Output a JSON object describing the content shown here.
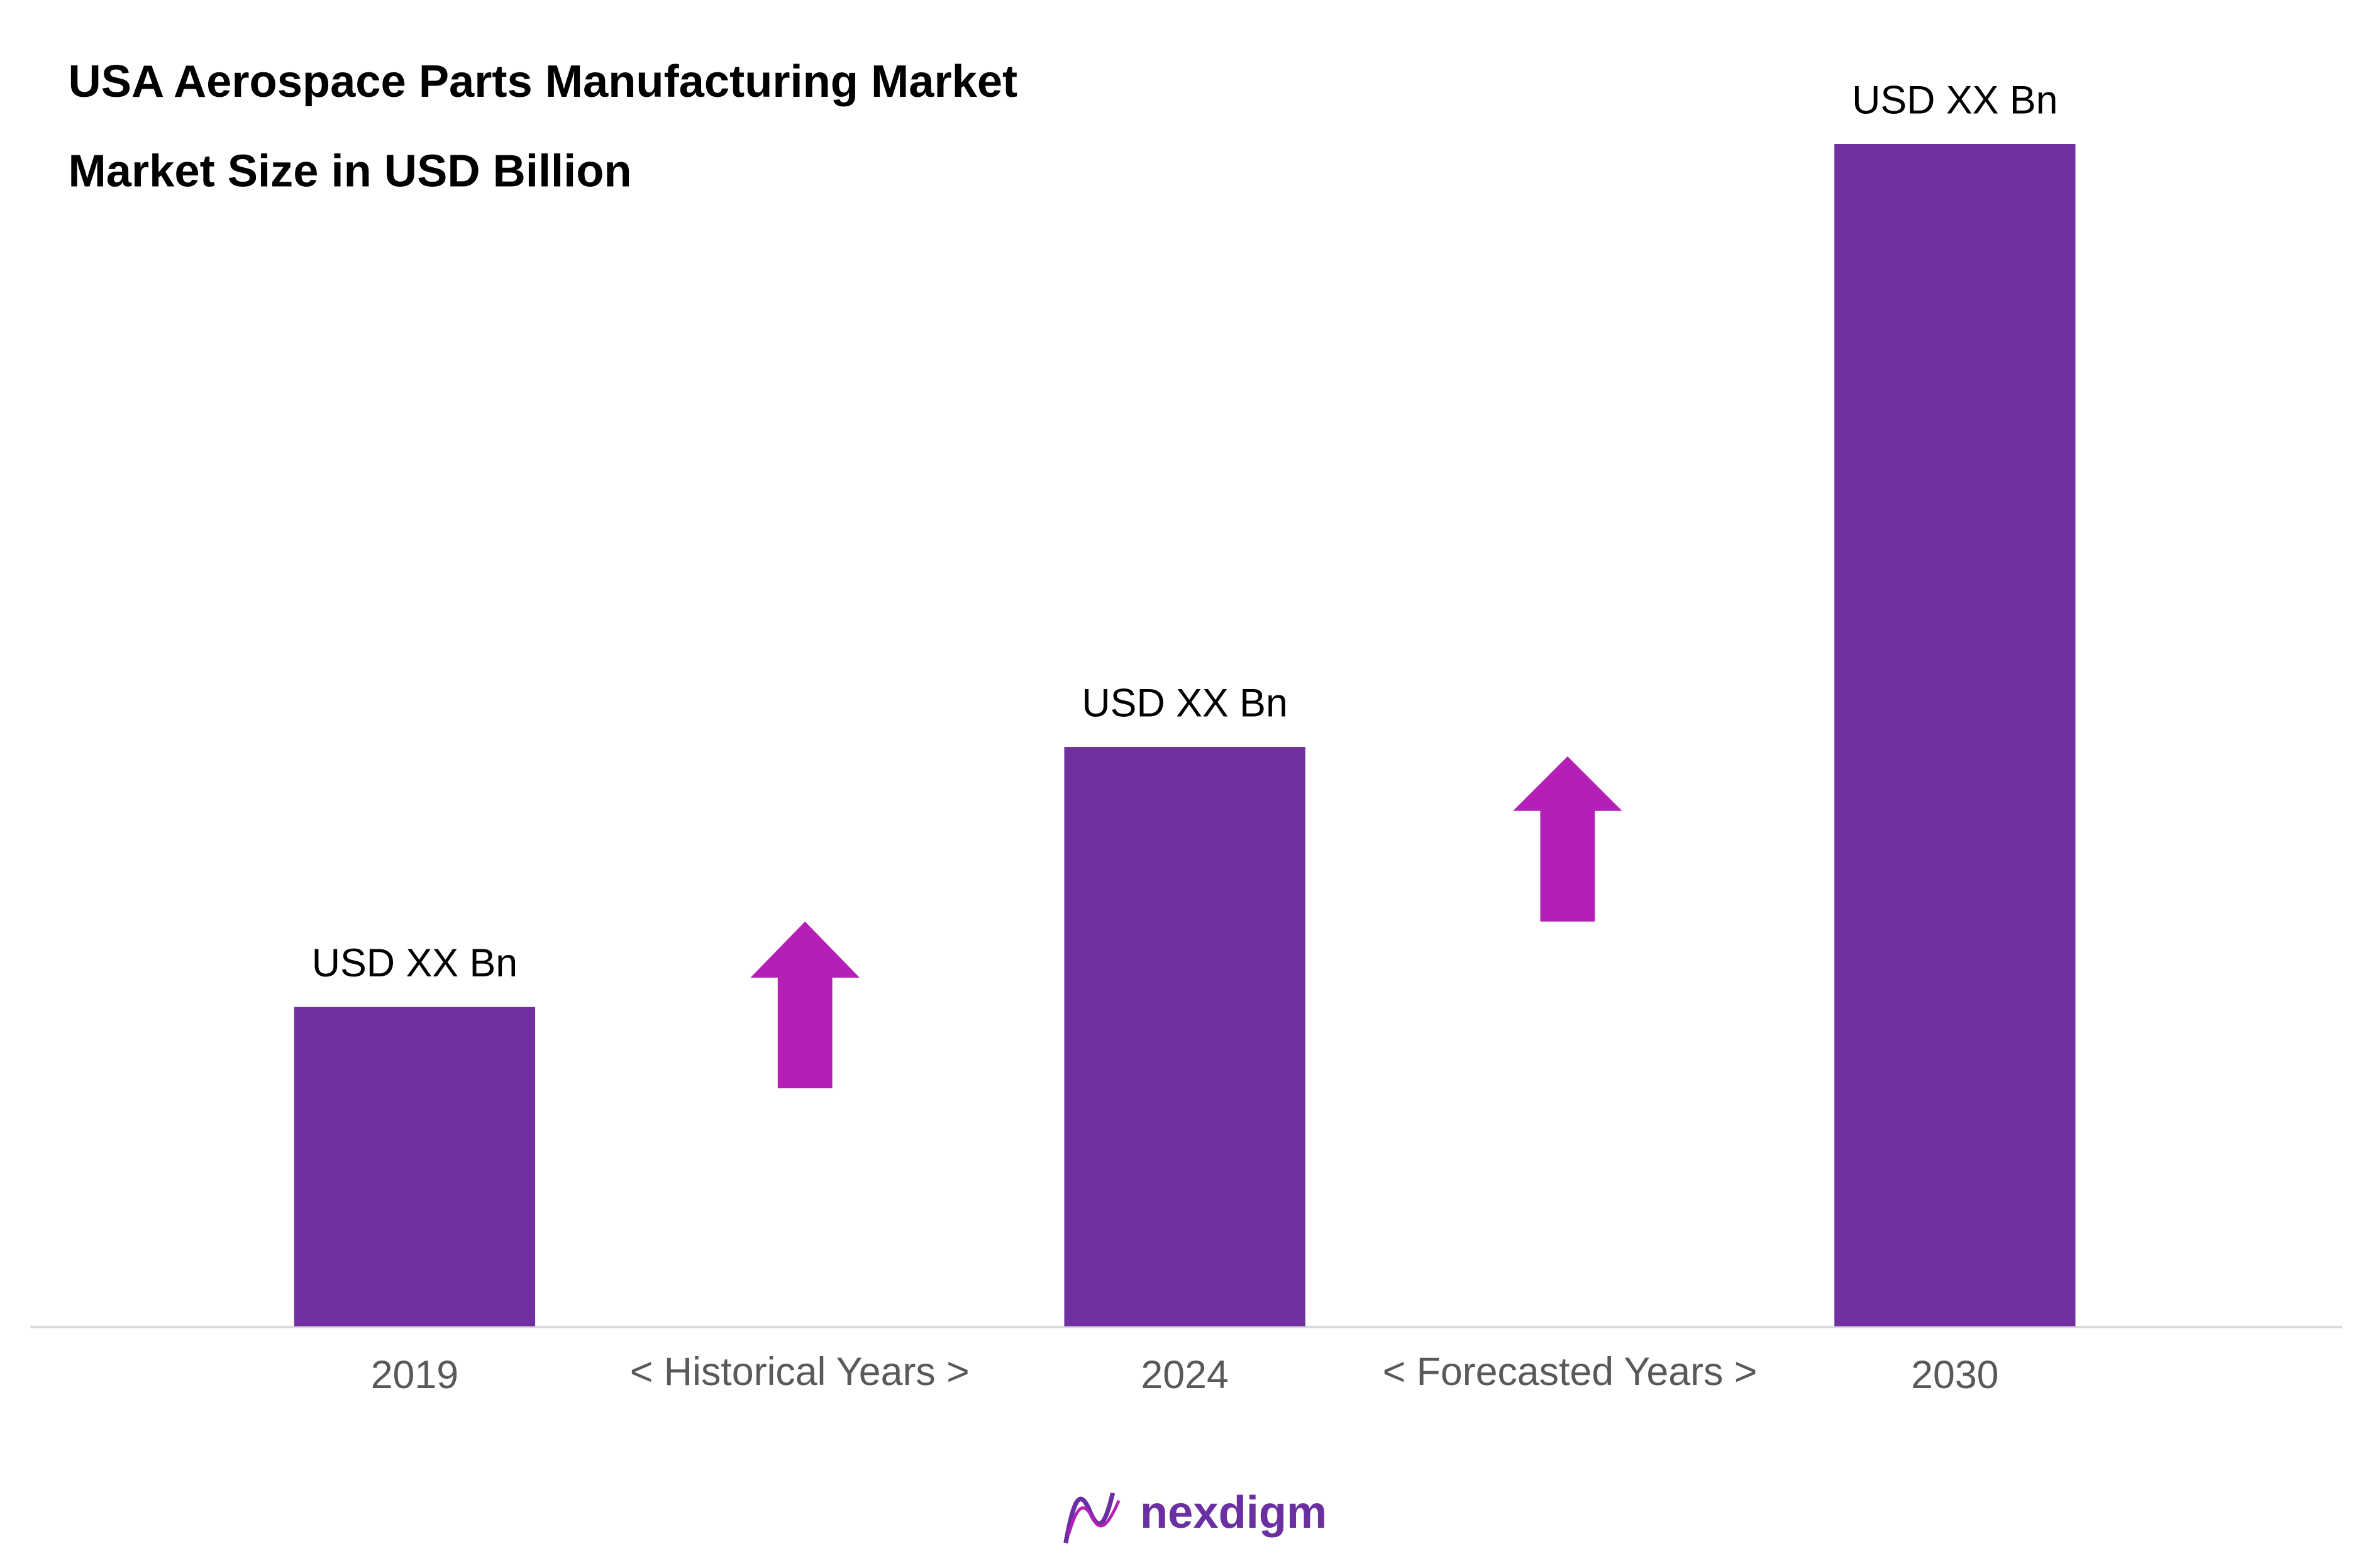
{
  "chart_data": {
    "type": "bar",
    "title": "USA Aerospace Parts Manufacturing Market",
    "subtitle": "Market Size in USD Billion",
    "categories": [
      "2019",
      "< Historical Years >",
      "2024",
      "< Forecasted Years >",
      "2030"
    ],
    "values": [
      27,
      null,
      49,
      null,
      100
    ],
    "value_labels": [
      "USD XX Bn",
      null,
      "USD XX Bn",
      null,
      "USD XX Bn"
    ],
    "color": "#7030a0"
  },
  "logo": "nexdigm"
}
